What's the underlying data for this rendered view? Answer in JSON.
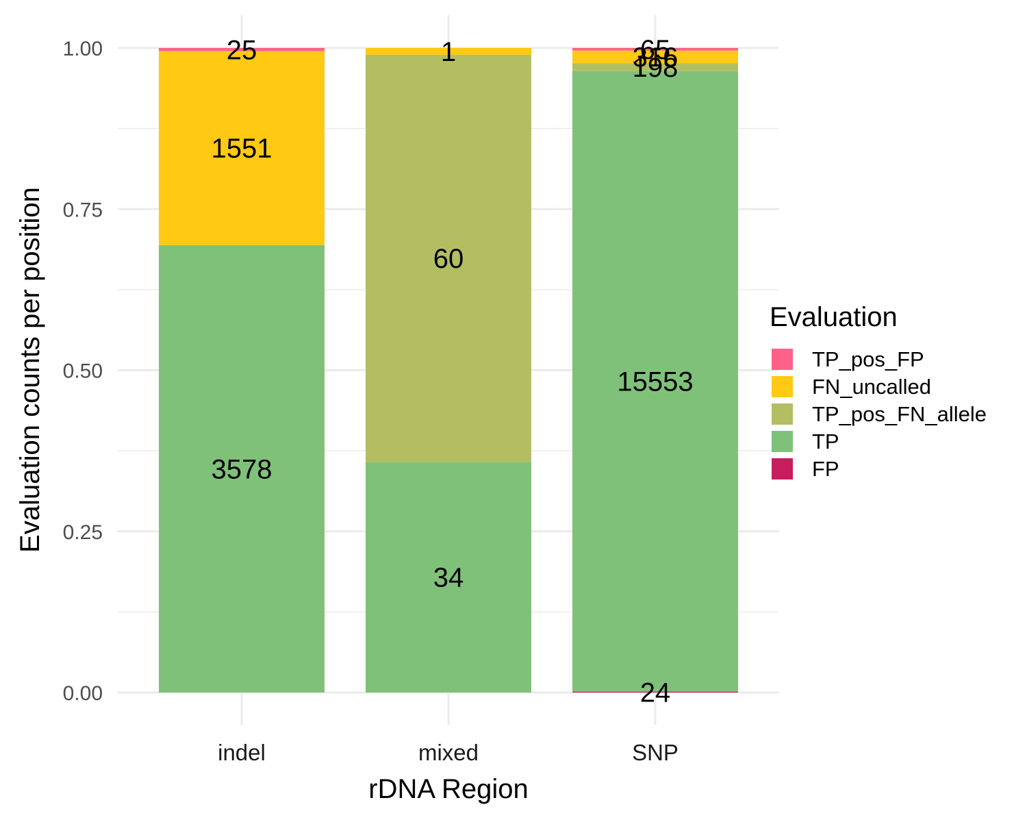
{
  "chart_data": {
    "type": "bar",
    "stacked": true,
    "normalized": true,
    "xlabel": "rDNA Region",
    "ylabel": "Evaluation counts per position",
    "categories": [
      "indel",
      "mixed",
      "SNP"
    ],
    "ylim": [
      0,
      1
    ],
    "yticks": [
      "0.00",
      "0.25",
      "0.50",
      "0.75",
      "1.00"
    ],
    "grid": true,
    "legend": {
      "title": "Evaluation",
      "position": "right",
      "entries": [
        "TP_pos_FP",
        "FN_uncalled",
        "TP_pos_FN_allele",
        "TP",
        "FP"
      ]
    },
    "stack_order_bottom_to_top": [
      "FP",
      "TP",
      "TP_pos_FN_allele",
      "FN_uncalled",
      "TP_pos_FP"
    ],
    "series": [
      {
        "name": "TP_pos_FP",
        "color": "#FF6188",
        "values": [
          25,
          0,
          65
        ]
      },
      {
        "name": "FN_uncalled",
        "color": "#FFC914",
        "values": [
          1551,
          1,
          316
        ]
      },
      {
        "name": "TP_pos_FN_allele",
        "color": "#B3BE62",
        "values": [
          0,
          60,
          198
        ]
      },
      {
        "name": "TP",
        "color": "#80C17A",
        "values": [
          3578,
          34,
          15553
        ]
      },
      {
        "name": "FP",
        "color": "#C71D5F",
        "values": [
          0,
          0,
          24
        ]
      }
    ]
  }
}
